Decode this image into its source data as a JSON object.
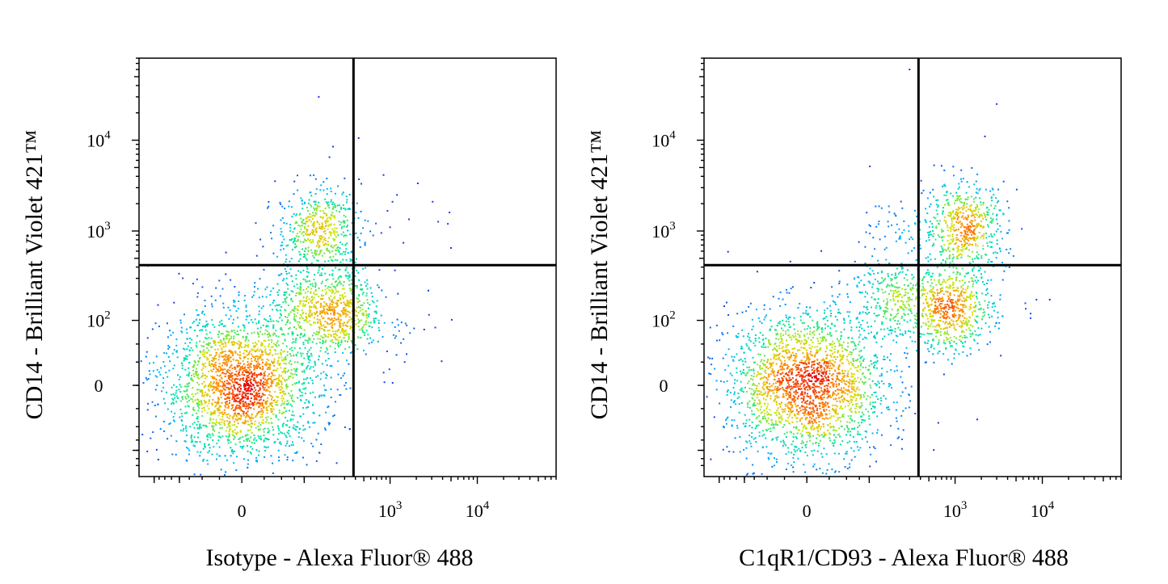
{
  "chart_data": [
    {
      "type": "scatter",
      "title": "",
      "xlabel": "Isotype - Alexa Fluor® 488",
      "ylabel": "CD14 - Brilliant Violet 421™",
      "xscale": "biexponential",
      "yscale": "biexponential",
      "xlim": [
        -300,
        80000
      ],
      "ylim": [
        -200,
        80000
      ],
      "x_ticks": [
        {
          "value": 0,
          "base": "0",
          "exp": ""
        },
        {
          "value": 1000,
          "base": "10",
          "exp": "3"
        },
        {
          "value": 10000,
          "base": "10",
          "exp": "4"
        }
      ],
      "y_ticks": [
        {
          "value": 0,
          "base": "0",
          "exp": ""
        },
        {
          "value": 100,
          "base": "10",
          "exp": "2"
        },
        {
          "value": 1000,
          "base": "10",
          "exp": "3"
        },
        {
          "value": 10000,
          "base": "10",
          "exp": "4"
        }
      ],
      "quadrant_gate": {
        "x": 380,
        "y": 420
      },
      "grid": false,
      "legend": "none",
      "color_map": [
        "#1f1fe0",
        "#00b4ff",
        "#00e5a0",
        "#cfe600",
        "#ff8c00",
        "#e60000"
      ],
      "populations": [
        {
          "x": 0,
          "y": 0,
          "n": 2300
        },
        {
          "x": 150,
          "y": 1000,
          "n": 520
        },
        {
          "x": 250,
          "y": 120,
          "n": 620
        },
        {
          "x": 80,
          "y": 180,
          "n": 160
        },
        {
          "x": 1500,
          "y": 90,
          "n": 28
        },
        {
          "x": 1500,
          "y": 1500,
          "n": 9
        }
      ],
      "points": [
        {
          "x": 150,
          "y": 30000
        },
        {
          "x": 220,
          "y": 8500
        },
        {
          "x": 200,
          "y": 6500
        },
        {
          "x": 300,
          "y": 3800
        },
        {
          "x": 1200,
          "y": 2500
        },
        {
          "x": 4800,
          "y": 1600
        },
        {
          "x": 1000,
          "y": 1100
        },
        {
          "x": 4600,
          "y": 1200
        },
        {
          "x": 5000,
          "y": 650
        }
      ]
    },
    {
      "type": "scatter",
      "title": "",
      "xlabel": "C1qR1/CD93 - Alexa Fluor® 488",
      "ylabel": "CD14 - Brilliant Violet 421™",
      "xscale": "biexponential",
      "yscale": "biexponential",
      "xlim": [
        -300,
        80000
      ],
      "ylim": [
        -200,
        80000
      ],
      "x_ticks": [
        {
          "value": 0,
          "base": "0",
          "exp": ""
        },
        {
          "value": 1000,
          "base": "10",
          "exp": "3"
        },
        {
          "value": 10000,
          "base": "10",
          "exp": "4"
        }
      ],
      "y_ticks": [
        {
          "value": 0,
          "base": "0",
          "exp": ""
        },
        {
          "value": 100,
          "base": "10",
          "exp": "2"
        },
        {
          "value": 1000,
          "base": "10",
          "exp": "3"
        },
        {
          "value": 10000,
          "base": "10",
          "exp": "4"
        }
      ],
      "quadrant_gate": {
        "x": 380,
        "y": 420
      },
      "grid": false,
      "legend": "none",
      "color_map": [
        "#1f1fe0",
        "#00b4ff",
        "#00e5a0",
        "#cfe600",
        "#ff8c00",
        "#e60000"
      ],
      "populations": [
        {
          "x": 0,
          "y": 0,
          "n": 2200
        },
        {
          "x": 1300,
          "y": 1100,
          "n": 560
        },
        {
          "x": 900,
          "y": 130,
          "n": 620
        },
        {
          "x": 170,
          "y": 180,
          "n": 300
        },
        {
          "x": 250,
          "y": 1000,
          "n": 60
        },
        {
          "x": 3000,
          "y": 150,
          "n": 25
        }
      ],
      "points": [
        {
          "x": 300,
          "y": 60000
        },
        {
          "x": 3000,
          "y": 25000
        },
        {
          "x": 2200,
          "y": 11000
        },
        {
          "x": 1800,
          "y": 4200
        }
      ]
    }
  ]
}
